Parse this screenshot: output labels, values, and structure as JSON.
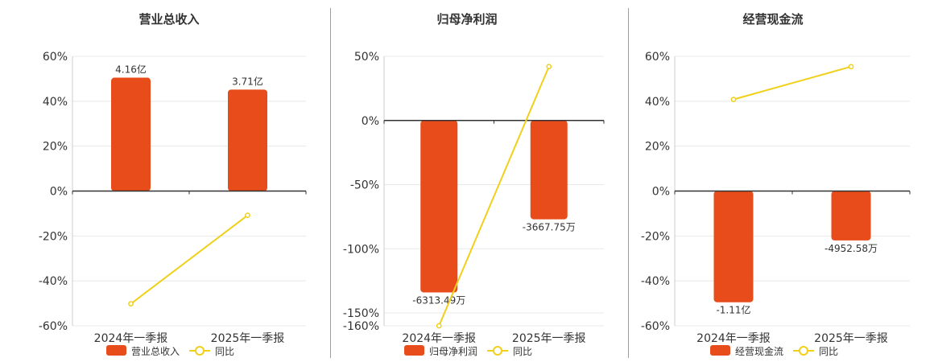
{
  "colors": {
    "bar": "#e84c1b",
    "line": "#f0d01a",
    "axis": "#333333",
    "grid": "#e8e8e8",
    "text": "#333333"
  },
  "chart_data": [
    {
      "type": "bar",
      "title": "营业总收入",
      "categories": [
        "2024年一季报",
        "2025年一季报"
      ],
      "yticks": [
        "60%",
        "40%",
        "20%",
        "0%",
        "-20%",
        "-40%",
        "-60%"
      ],
      "ylim": [
        -60,
        60
      ],
      "series": [
        {
          "name": "营业总收入",
          "kind": "bar",
          "values": [
            50.5,
            45.2
          ],
          "labels": [
            "4.16亿",
            "3.71亿"
          ]
        },
        {
          "name": "同比",
          "kind": "line",
          "values": [
            -50.2,
            -10.8
          ]
        }
      ],
      "legend": "bottom-center"
    },
    {
      "type": "bar",
      "title": "归母净利润",
      "categories": [
        "2024年一季报",
        "2025年一季报"
      ],
      "yticks": [
        "50%",
        "0%",
        "-50%",
        "-100%",
        "-150%",
        "-160%"
      ],
      "ylim": [
        -160,
        50
      ],
      "series": [
        {
          "name": "归母净利润",
          "kind": "bar",
          "values": [
            -134,
            -77
          ],
          "labels": [
            "-6313.49万",
            "-3667.75万"
          ]
        },
        {
          "name": "同比",
          "kind": "line",
          "values": [
            -160,
            42
          ]
        }
      ],
      "legend": "bottom-center"
    },
    {
      "type": "bar",
      "title": "经营现金流",
      "categories": [
        "2024年一季报",
        "2025年一季报"
      ],
      "yticks": [
        "60%",
        "40%",
        "20%",
        "0%",
        "-20%",
        "-40%",
        "-60%"
      ],
      "ylim": [
        -60,
        60
      ],
      "series": [
        {
          "name": "经营现金流",
          "kind": "bar",
          "values": [
            -49.5,
            -22
          ],
          "labels": [
            "-1.11亿",
            "-4952.58万"
          ]
        },
        {
          "name": "同比",
          "kind": "line",
          "values": [
            40.8,
            55.4
          ]
        }
      ],
      "legend": "bottom-center"
    }
  ]
}
